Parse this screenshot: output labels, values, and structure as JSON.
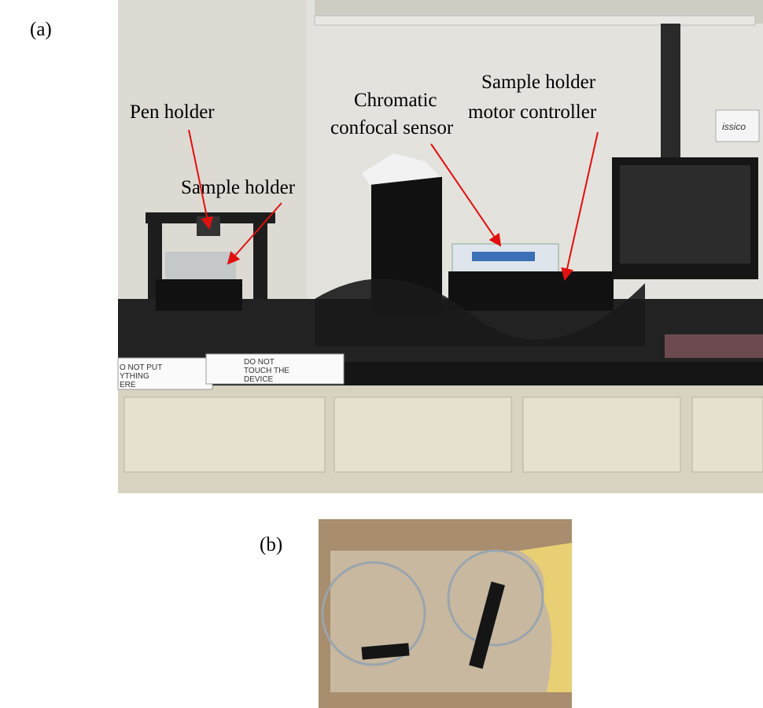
{
  "figure": {
    "panels": [
      {
        "label": "(a)",
        "annotations": [
          {
            "lines": [
              "Pen holder"
            ]
          },
          {
            "lines": [
              "Sample holder"
            ]
          },
          {
            "lines": [
              "Chromatic",
              "confocal sensor"
            ]
          },
          {
            "lines": [
              "Sample holder",
              "motor controller"
            ]
          }
        ],
        "signs": [
          {
            "lines": [
              "O NOT PUT",
              "YTHING",
              "ERE"
            ]
          },
          {
            "lines": [
              "DO NOT",
              "TOUCH THE",
              "DEVICE"
            ]
          }
        ]
      },
      {
        "label": "(b)"
      }
    ]
  }
}
